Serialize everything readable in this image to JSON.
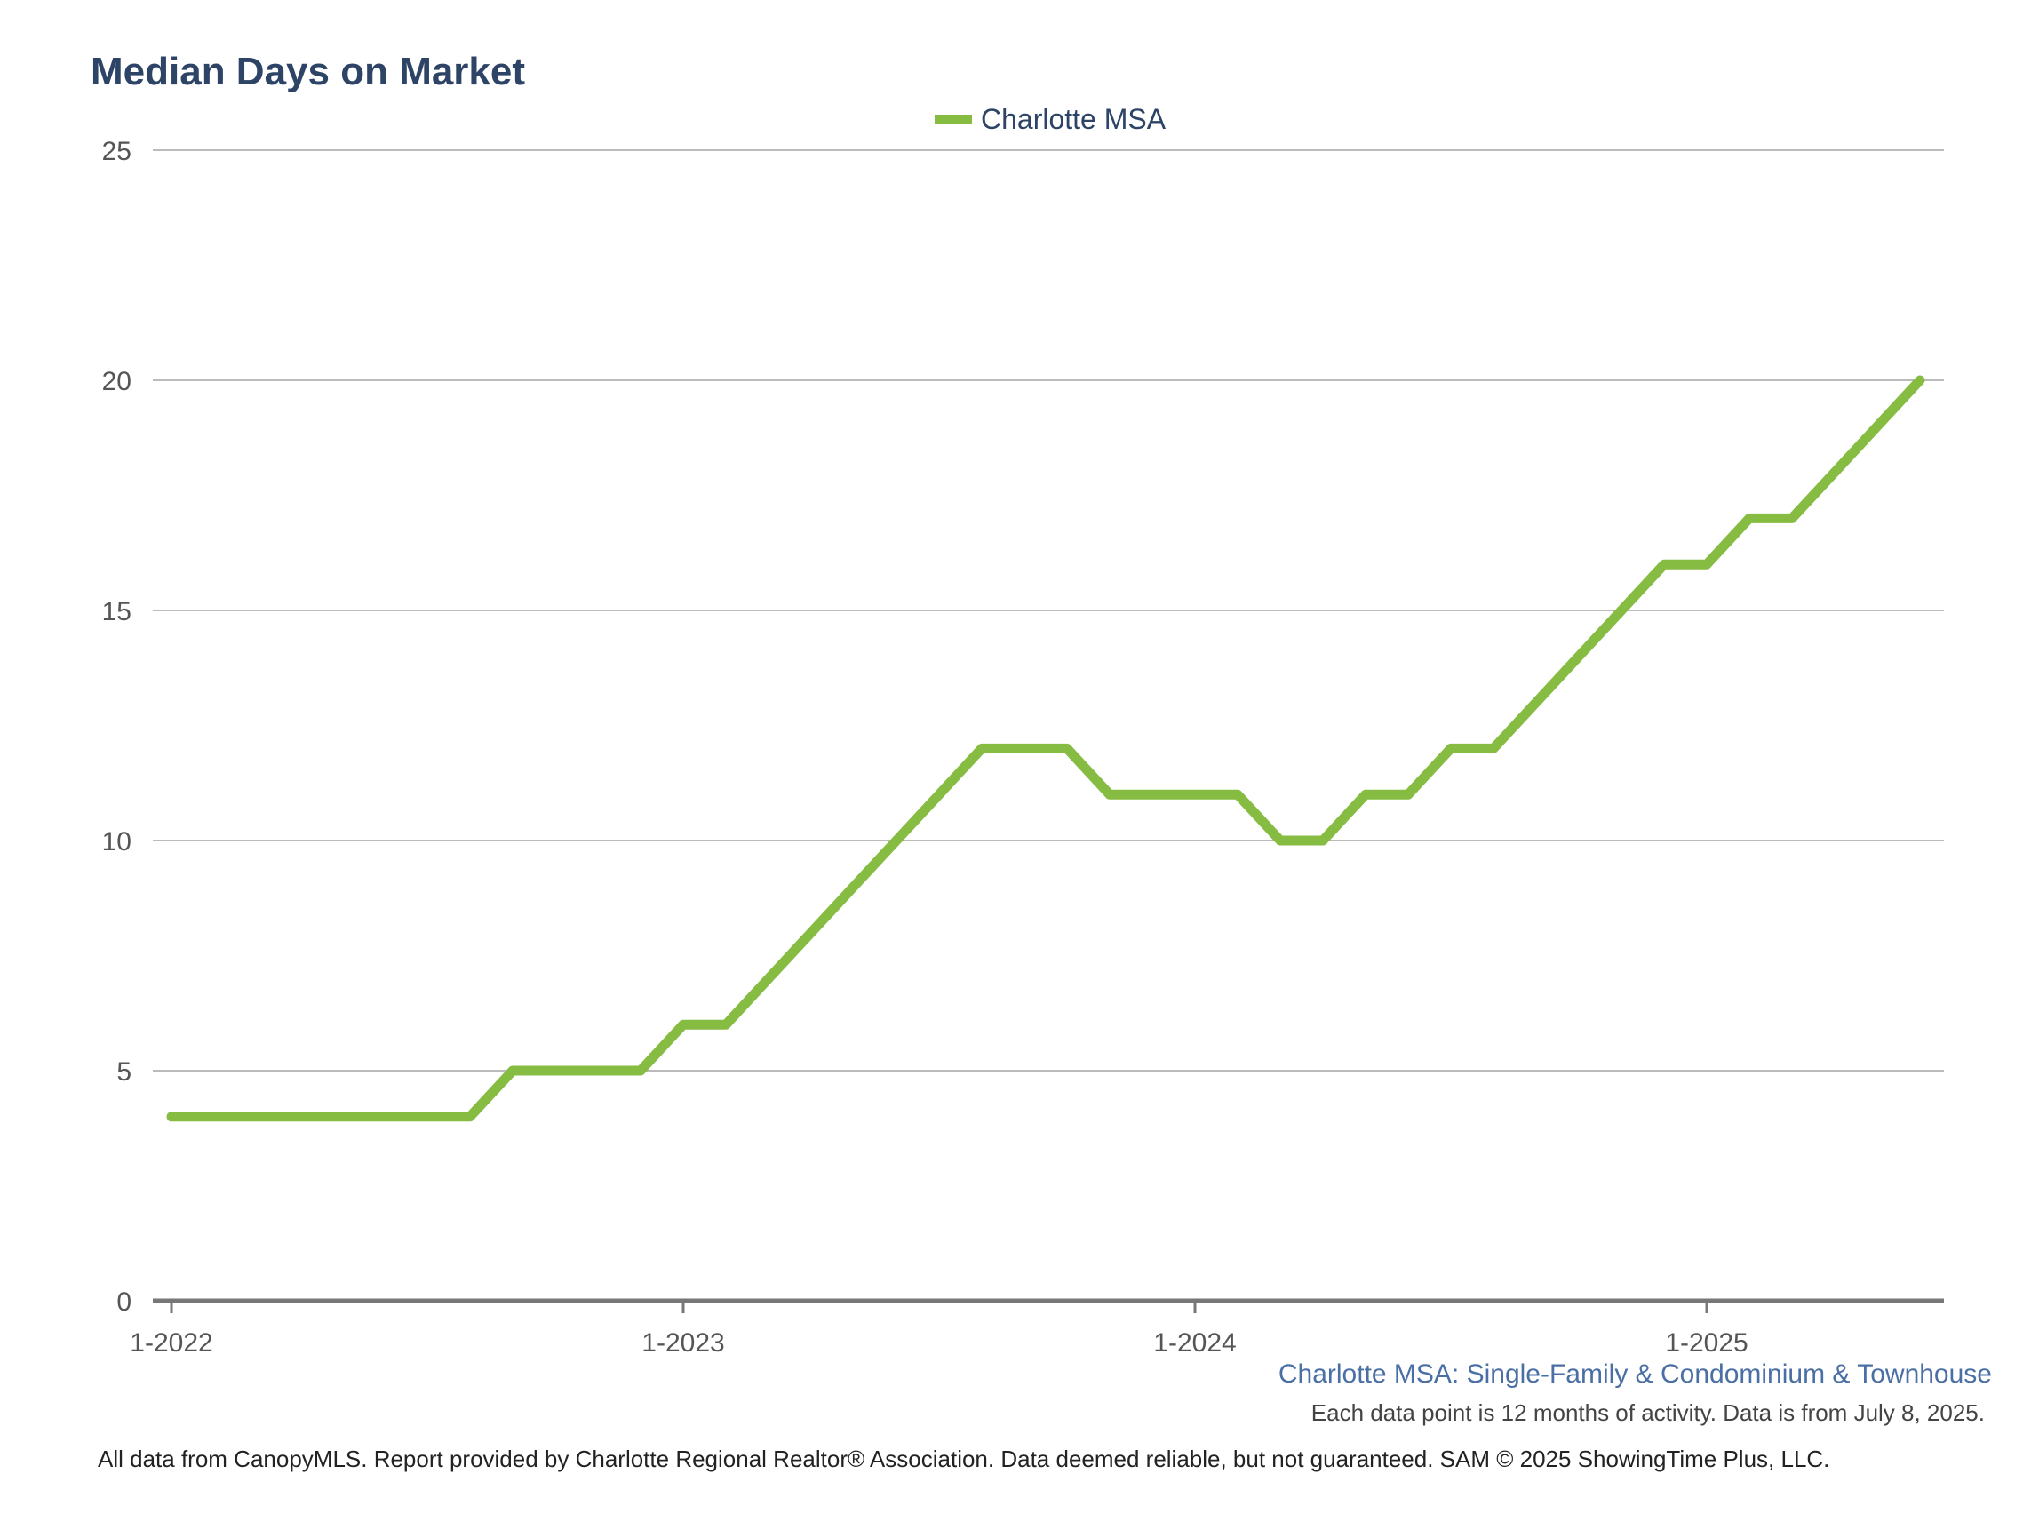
{
  "chart_data": {
    "type": "line",
    "title": "Median Days on Market",
    "legend_position": "top-center",
    "grid": true,
    "x_tick_labels": [
      "1-2022",
      "1-2023",
      "1-2024",
      "1-2025"
    ],
    "y_ticks": [
      0,
      5,
      10,
      15,
      20,
      25
    ],
    "ylim": [
      0,
      25
    ],
    "series": [
      {
        "name": "Charlotte MSA",
        "color": "#86bc42",
        "x": [
          "2022-01",
          "2022-02",
          "2022-03",
          "2022-04",
          "2022-05",
          "2022-06",
          "2022-07",
          "2022-08",
          "2022-09",
          "2022-10",
          "2022-11",
          "2022-12",
          "2023-01",
          "2023-02",
          "2023-03",
          "2023-04",
          "2023-05",
          "2023-06",
          "2023-07",
          "2023-08",
          "2023-09",
          "2023-10",
          "2023-11",
          "2023-12",
          "2024-01",
          "2024-02",
          "2024-03",
          "2024-04",
          "2024-05",
          "2024-06",
          "2024-07",
          "2024-08",
          "2024-09",
          "2024-10",
          "2024-11",
          "2024-12",
          "2025-01",
          "2025-02",
          "2025-03",
          "2025-04",
          "2025-05",
          "2025-06"
        ],
        "values": [
          4,
          4,
          4,
          4,
          4,
          4,
          4,
          4,
          5,
          5,
          5,
          5,
          6,
          6,
          7,
          8,
          9,
          10,
          11,
          12,
          12,
          12,
          11,
          11,
          11,
          11,
          10,
          10,
          11,
          11,
          12,
          12,
          13,
          14,
          15,
          16,
          16,
          17,
          17,
          18,
          19,
          20
        ]
      }
    ],
    "subtitle": "Charlotte MSA: Single-Family & Condominium & Townhouse",
    "note": "Each data point is 12 months of activity. Data is from July 8, 2025.",
    "footer": "All data from CanopyMLS. Report provided by Charlotte Regional Realtor® Association. Data deemed reliable, but not guaranteed. SAM © 2025 ShowingTime Plus, LLC."
  },
  "colors": {
    "series": "#86bc42",
    "title": "#2d4466",
    "subtitle": "#4a6fa5",
    "grid": "#bbbbbb",
    "axis": "#777777"
  }
}
